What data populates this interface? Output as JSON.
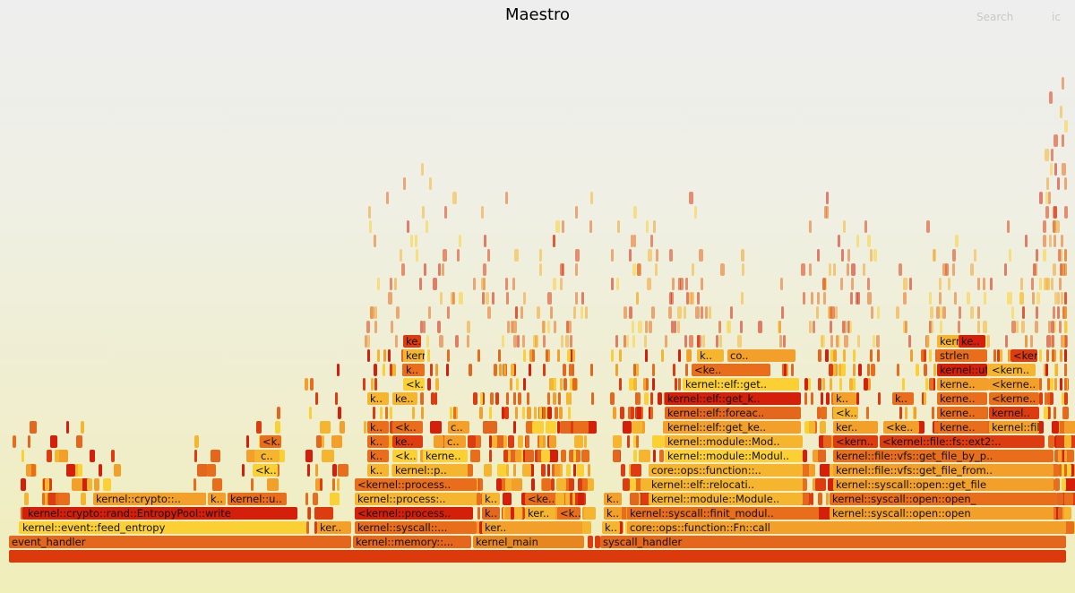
{
  "title": "Maestro",
  "search_label": "Search",
  "ic_label": "ic",
  "frames": [
    {
      "label": "",
      "color": "#dc3a0c"
    },
    {
      "label": "event_handler",
      "color": "#e3671c"
    },
    {
      "label": "kernel::memory::...",
      "color": "#e3671c"
    },
    {
      "label": "kernel_main",
      "color": "#e68620"
    },
    {
      "label": "",
      "color": "#dd3c10"
    },
    {
      "label": "",
      "color": "#dd3c10"
    },
    {
      "label": "syscall_handler",
      "color": "#e3671c"
    },
    {
      "label": "kernel::event::feed_entropy",
      "color": "#fbd034"
    },
    {
      "label": "ker..",
      "color": "#f2a02a"
    },
    {
      "label": "kernel::syscall::...",
      "color": "#e86e1c"
    },
    {
      "label": "ker..",
      "color": "#f2a02a"
    },
    {
      "label": "k..",
      "color": "#f5b52e"
    },
    {
      "label": "core::ops::function::Fn::call",
      "color": "#f2a02a"
    },
    {
      "label": "kernel::crypto::rand::EntropyPool::write",
      "color": "#d41f0a"
    },
    {
      "label": "<kernel::process..",
      "color": "#d41f0a"
    },
    {
      "label": "k..",
      "color": "#e3671c"
    },
    {
      "label": "ker..",
      "color": "#f5b52e"
    },
    {
      "label": "<k..",
      "color": "#e86e1c"
    },
    {
      "label": "k..",
      "color": "#f2a02a"
    },
    {
      "label": "kernel::syscall::finit_modul..",
      "color": "#e86e1c"
    },
    {
      "label": "kernel::syscall::open::open",
      "color": "#f2a02a"
    },
    {
      "label": "kernel::crypto::..",
      "color": "#f2a02a"
    },
    {
      "label": "k..",
      "color": "#f2a02a"
    },
    {
      "label": "kernel::u..",
      "color": "#e86e1c"
    },
    {
      "label": "kernel::process:..",
      "color": "#f5b52e"
    },
    {
      "label": "k..",
      "color": "#f5b52e"
    },
    {
      "label": "<ke..",
      "color": "#e86e1c"
    },
    {
      "label": "k..",
      "color": "#f2a02a"
    },
    {
      "label": "kernel::module::Module..",
      "color": "#f5b52e"
    },
    {
      "label": "kernel::syscall::open::open_",
      "color": "#e86e1c"
    },
    {
      "label": "<kernel::process..",
      "color": "#e86e1c"
    },
    {
      "label": "kernel::elf::relocati..",
      "color": "#f5b52e"
    },
    {
      "label": "kernel::syscall::open::get_file",
      "color": "#f2a02a"
    },
    {
      "label": "<k..",
      "color": "#fbd034"
    },
    {
      "label": "k..",
      "color": "#f5b52e"
    },
    {
      "label": "kernel::p..",
      "color": "#f5b52e"
    },
    {
      "label": "core::ops::function::..",
      "color": "#f5b52e"
    },
    {
      "label": "kernel::file::vfs::get_file_from..",
      "color": "#f2a02a"
    },
    {
      "label": "ke..",
      "color": "#f5b52e"
    },
    {
      "label": "c..",
      "color": "#f5b52e"
    },
    {
      "label": "k..",
      "color": "#e86e1c"
    },
    {
      "label": "<k..",
      "color": "#fbd034"
    },
    {
      "label": "kerne..",
      "color": "#fbd034"
    },
    {
      "label": "kernel::module::Modul..",
      "color": "#fbd034"
    },
    {
      "label": "kernel::file::vfs::get_file_by_p..",
      "color": "#e86e1c"
    },
    {
      "label": "<k..",
      "color": "#e86e1c"
    },
    {
      "label": "k..",
      "color": "#e86e1c"
    },
    {
      "label": "ke..",
      "color": "#dd3c10"
    },
    {
      "label": "c..",
      "color": "#f2a02a"
    },
    {
      "label": "kernel::module::Mod..",
      "color": "#f5b52e"
    },
    {
      "label": "<kern..",
      "color": "#dd3c10"
    },
    {
      "label": "<kernel::file::fs::ext2:..",
      "color": "#dd3c10"
    },
    {
      "label": "k..",
      "color": "#e86e1c"
    },
    {
      "label": "<k..",
      "color": "#e86e1c"
    },
    {
      "label": "c..",
      "color": "#f2a02a"
    },
    {
      "label": "kernel::elf::get_ke..",
      "color": "#f2a02a"
    },
    {
      "label": "ker..",
      "color": "#f2a02a"
    },
    {
      "label": "<ke..",
      "color": "#f2a02a"
    },
    {
      "label": "kerne..",
      "color": "#e86e1c"
    },
    {
      "label": "kernel::file:..",
      "color": "#f2a02a"
    },
    {
      "label": "kernel::elf::foreac..",
      "color": "#e3671c"
    },
    {
      "label": "<k..",
      "color": "#f5b52e"
    },
    {
      "label": "kerne..",
      "color": "#e86e1c"
    },
    {
      "label": "kernel..",
      "color": "#dd3c10"
    },
    {
      "label": "k..",
      "color": "#f5b52e"
    },
    {
      "label": "ke..",
      "color": "#f5b52e"
    },
    {
      "label": "kernel::elf::get_k..",
      "color": "#d41f0a"
    },
    {
      "label": "k..",
      "color": "#f2a02a"
    },
    {
      "label": "k..",
      "color": "#e86e1c"
    },
    {
      "label": "kerne..",
      "color": "#e86e1c"
    },
    {
      "label": "<kerne..",
      "color": "#e86e1c"
    },
    {
      "label": "<k..",
      "color": "#fbd034"
    },
    {
      "label": "kernel::elf::get..",
      "color": "#fbd034"
    },
    {
      "label": "kerne..",
      "color": "#f2a02a"
    },
    {
      "label": "<kerne..",
      "color": "#f2a02a"
    },
    {
      "label": "k..",
      "color": "#e86e1c"
    },
    {
      "label": "<ke..",
      "color": "#e86e1c"
    },
    {
      "label": "kernel::util::..",
      "color": "#d41f0a"
    },
    {
      "label": "<kern..",
      "color": "#f5b52e"
    },
    {
      "label": "kernel..",
      "color": "#f5b52e"
    },
    {
      "label": "k..",
      "color": "#f5b52e"
    },
    {
      "label": "co..",
      "color": "#f2a02a"
    },
    {
      "label": "strlen",
      "color": "#e86e1c"
    },
    {
      "label": "<kern..",
      "color": "#dd3c10"
    },
    {
      "label": "ke..",
      "color": "#dd3c10"
    },
    {
      "label": "kerne..",
      "color": "#f5b52e"
    },
    {
      "label": "ke..",
      "color": "#d41f0a"
    }
  ]
}
